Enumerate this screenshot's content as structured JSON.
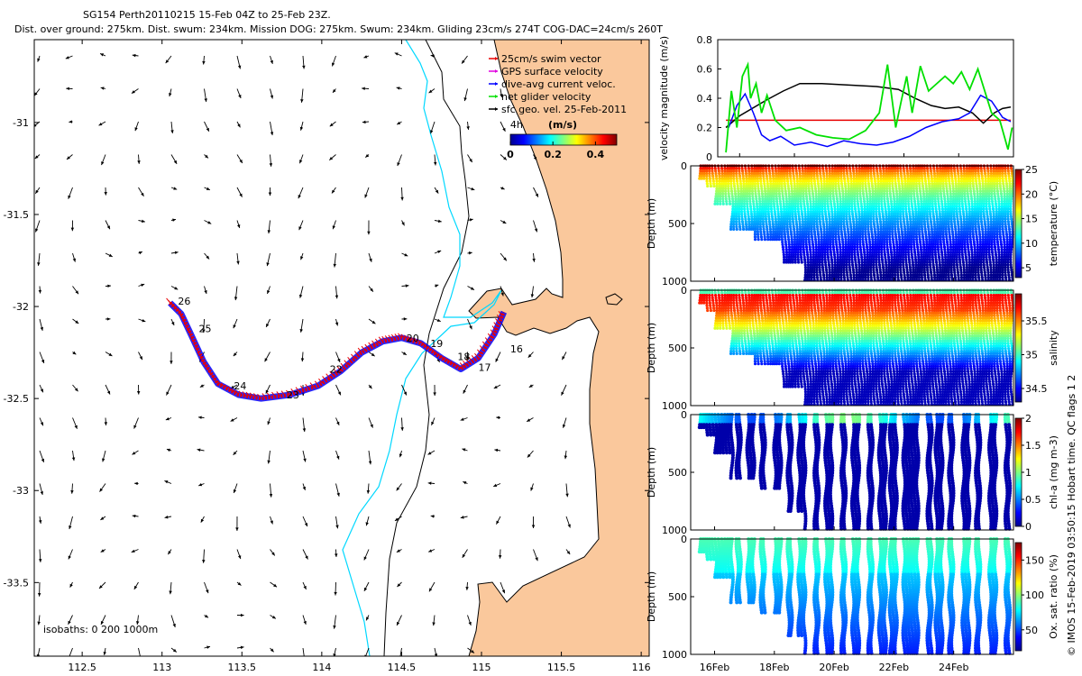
{
  "header": {
    "line1": "SG154 Perth20110215 15-Feb 04Z to 25-Feb 23Z.",
    "line2": "Dist. over ground: 275km. Dist. swum: 234km. Mission DOG: 275km. Swum: 234km. Gliding 23cm/s 274T COG-DAC=24cm/s 260T"
  },
  "credit": "© IMOS 15-Feb-2019 03:50:15 Hobart time. QC flags 1  2",
  "colors": {
    "land": "#fac89c",
    "coast": "#000000",
    "isobath_200": "#00d8ff",
    "red_track": "#e80000",
    "blue_track": "#0000ff",
    "green": "#00e000",
    "black": "#000000"
  },
  "chart_data": [
    {
      "type": "map",
      "name": "track-map",
      "xlim": [
        112.2,
        116.05
      ],
      "ylim": [
        -33.9,
        -30.55
      ],
      "xticks": [
        "112.5",
        "113",
        "113.5",
        "114",
        "114.5",
        "115",
        "115.5",
        "116"
      ],
      "xtick_values": [
        112.5,
        113,
        113.5,
        114,
        114.5,
        115,
        115.5,
        116
      ],
      "yticks": [
        "-31",
        "-31.5",
        "-32",
        "-32.5",
        "-33",
        "-33.5"
      ],
      "ytick_values": [
        -31,
        -31.5,
        -32,
        -32.5,
        -33,
        -33.5
      ],
      "legend": [
        {
          "label": "25cm/s swim vector",
          "color": "#e80000"
        },
        {
          "label": "GPS surface velocity",
          "color": "#e000e0"
        },
        {
          "label": "dive-avg current veloc.",
          "color": "#0000ff"
        },
        {
          "label": "net glider velocity",
          "color": "#00e000"
        },
        {
          "label": "sfc geo. vel. 25-Feb-2011",
          "color": "#000000"
        }
      ],
      "colorbar": {
        "title": "(m/s)",
        "ticks": [
          "0",
          "0.2",
          "0.4"
        ],
        "range": [
          0,
          0.5
        ]
      },
      "isobaths_label": "isobaths: 0   200  1000m",
      "track": [
        [
          113.05,
          -31.98
        ],
        [
          113.12,
          -32.04
        ],
        [
          113.18,
          -32.15
        ],
        [
          113.26,
          -32.3
        ],
        [
          113.35,
          -32.42
        ],
        [
          113.48,
          -32.48
        ],
        [
          113.62,
          -32.5
        ],
        [
          113.8,
          -32.48
        ],
        [
          113.98,
          -32.43
        ],
        [
          114.12,
          -32.35
        ],
        [
          114.25,
          -32.25
        ],
        [
          114.38,
          -32.19
        ],
        [
          114.5,
          -32.17
        ],
        [
          114.62,
          -32.2
        ],
        [
          114.75,
          -32.28
        ],
        [
          114.87,
          -32.34
        ],
        [
          114.98,
          -32.28
        ],
        [
          115.08,
          -32.15
        ],
        [
          115.14,
          -32.03
        ]
      ],
      "track_labels": [
        {
          "text": "26",
          "lon": 113.1,
          "lat": -31.99
        },
        {
          "text": "25",
          "lon": 113.23,
          "lat": -32.14
        },
        {
          "text": "24",
          "lon": 113.45,
          "lat": -32.45
        },
        {
          "text": "23",
          "lon": 113.78,
          "lat": -32.5
        },
        {
          "text": "22",
          "lon": 114.05,
          "lat": -32.36
        },
        {
          "text": "20",
          "lon": 114.53,
          "lat": -32.19
        },
        {
          "text": "19",
          "lon": 114.68,
          "lat": -32.22
        },
        {
          "text": "18",
          "lon": 114.85,
          "lat": -32.29
        },
        {
          "text": "17",
          "lon": 114.98,
          "lat": -32.35
        },
        {
          "text": "16",
          "lon": 115.18,
          "lat": -32.25
        },
        {
          "text": "4h",
          "lon": 115.18,
          "lat": -31.03
        }
      ]
    },
    {
      "type": "line",
      "name": "velocity-magnitude",
      "ylabel": "velocity magnitude (m/s)",
      "ylim": [
        0,
        0.8
      ],
      "yticks": [
        "0",
        "0.2",
        "0.4",
        "0.6",
        "0.8"
      ],
      "xlim": [
        15.2,
        26.0
      ],
      "series": [
        {
          "color": "#e80000",
          "x": [
            15.5,
            24.3,
            24.8,
            25.9
          ],
          "y": [
            0.25,
            0.25,
            0.25,
            0.25
          ]
        },
        {
          "color": "#000000",
          "x": [
            15.5,
            16.0,
            17.0,
            17.6,
            18.2,
            19.0,
            20.0,
            21.0,
            21.8,
            22.4,
            23.0,
            23.5,
            24.0,
            24.5,
            24.9,
            25.3,
            25.6,
            25.9
          ],
          "y": [
            0.2,
            0.28,
            0.39,
            0.45,
            0.5,
            0.5,
            0.49,
            0.48,
            0.46,
            0.4,
            0.35,
            0.33,
            0.34,
            0.3,
            0.23,
            0.3,
            0.33,
            0.34
          ]
        },
        {
          "color": "#0000ff",
          "x": [
            15.6,
            15.9,
            16.2,
            16.5,
            16.8,
            17.1,
            17.5,
            18.0,
            18.6,
            19.2,
            19.8,
            20.4,
            21.0,
            21.6,
            22.2,
            22.8,
            23.4,
            24.0,
            24.4,
            24.8,
            25.2,
            25.6,
            25.9
          ],
          "y": [
            0.2,
            0.35,
            0.43,
            0.3,
            0.15,
            0.11,
            0.14,
            0.08,
            0.1,
            0.07,
            0.11,
            0.09,
            0.08,
            0.1,
            0.14,
            0.2,
            0.24,
            0.26,
            0.3,
            0.42,
            0.38,
            0.27,
            0.24
          ]
        },
        {
          "color": "#00e000",
          "x": [
            15.5,
            15.7,
            15.9,
            16.1,
            16.3,
            16.4,
            16.6,
            16.8,
            17.0,
            17.3,
            17.7,
            18.2,
            18.8,
            19.4,
            20.0,
            20.6,
            21.1,
            21.4,
            21.7,
            21.9,
            22.1,
            22.3,
            22.6,
            22.9,
            23.2,
            23.5,
            23.8,
            24.1,
            24.4,
            24.7,
            25.0,
            25.2,
            25.5,
            25.8,
            25.95
          ],
          "y": [
            0.03,
            0.45,
            0.2,
            0.55,
            0.63,
            0.4,
            0.5,
            0.3,
            0.42,
            0.25,
            0.18,
            0.2,
            0.15,
            0.13,
            0.12,
            0.18,
            0.3,
            0.63,
            0.2,
            0.38,
            0.55,
            0.3,
            0.62,
            0.45,
            0.5,
            0.55,
            0.5,
            0.58,
            0.46,
            0.6,
            0.42,
            0.3,
            0.25,
            0.05,
            0.2
          ]
        }
      ]
    },
    {
      "type": "heatmap",
      "name": "temperature-section",
      "ylabel": "Depth (m)",
      "clabel": "temperature (°C)",
      "ylim": [
        1000,
        0
      ],
      "yticks": [
        "0",
        "500",
        "1000"
      ],
      "cticks": [
        "5",
        "10",
        "15",
        "20",
        "25"
      ],
      "crange": [
        3,
        25
      ]
    },
    {
      "type": "heatmap",
      "name": "salinity-section",
      "ylabel": "Depth (m)",
      "clabel": "salinity",
      "ylim": [
        1000,
        0
      ],
      "yticks": [
        "0",
        "500",
        "1000"
      ],
      "cticks": [
        "34.5",
        "35",
        "35.5"
      ],
      "crange": [
        34.3,
        35.9
      ]
    },
    {
      "type": "heatmap",
      "name": "chla-section",
      "ylabel": "Depth (m)",
      "clabel": "chl-a (mg m-3)",
      "ylim": [
        1000,
        0
      ],
      "yticks": [
        "0",
        "500",
        "1000"
      ],
      "cticks": [
        "0",
        "0.5",
        "1",
        "1.5",
        "2"
      ],
      "crange": [
        0,
        2
      ]
    },
    {
      "type": "heatmap",
      "name": "oxygen-section",
      "ylabel": "Depth (m)",
      "clabel": "Ox. sat. ratio (%)",
      "ylim": [
        1000,
        0
      ],
      "yticks": [
        "0",
        "500",
        "1000"
      ],
      "cticks": [
        "50",
        "100",
        "150"
      ],
      "crange": [
        20,
        175
      ],
      "xticks": [
        "16Feb",
        "18Feb",
        "20Feb",
        "22Feb",
        "24Feb"
      ],
      "xtick_values": [
        16,
        18,
        20,
        22,
        24
      ]
    }
  ]
}
